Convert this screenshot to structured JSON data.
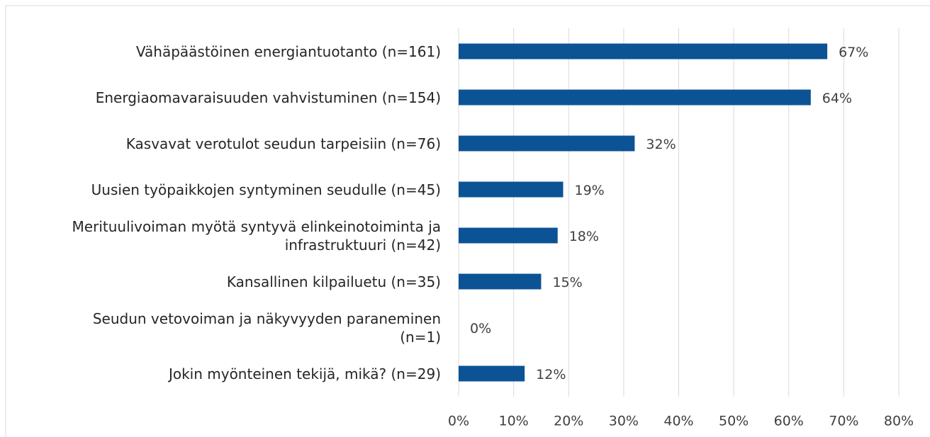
{
  "chart_data": {
    "type": "bar",
    "orientation": "horizontal",
    "categories": [
      "Vähäpäästöinen energiantuotanto (n=161)",
      "Energiaomavaraisuuden vahvistuminen (n=154)",
      "Kasvavat verotulot seudun tarpeisiin (n=76)",
      "Uusien työpaikkojen syntyminen seudulle (n=45)",
      "Merituulivoiman myötä syntyvä elinkeinotoiminta ja\ninfrastruktuuri (n=42)",
      "Kansallinen kilpailuetu (n=35)",
      "Seudun vetovoiman ja näkyvyyden paraneminen\n(n=1)",
      "Jokin myönteinen tekijä, mikä? (n=29)"
    ],
    "values": [
      67,
      64,
      32,
      19,
      18,
      15,
      0,
      12
    ],
    "value_labels": [
      "67%",
      "64%",
      "32%",
      "19%",
      "18%",
      "15%",
      "0%",
      "12%"
    ],
    "color": "#0b5394",
    "xlim": [
      0,
      80
    ],
    "xticks": [
      {
        "value": 0,
        "label": "0%"
      },
      {
        "value": 10,
        "label": "10%"
      },
      {
        "value": 20,
        "label": "20%"
      },
      {
        "value": 30,
        "label": "30%"
      },
      {
        "value": 40,
        "label": "40%"
      },
      {
        "value": 50,
        "label": "50%"
      },
      {
        "value": 60,
        "label": "60%"
      },
      {
        "value": 70,
        "label": "70%"
      },
      {
        "value": 80,
        "label": "80%"
      }
    ],
    "grid": true
  }
}
